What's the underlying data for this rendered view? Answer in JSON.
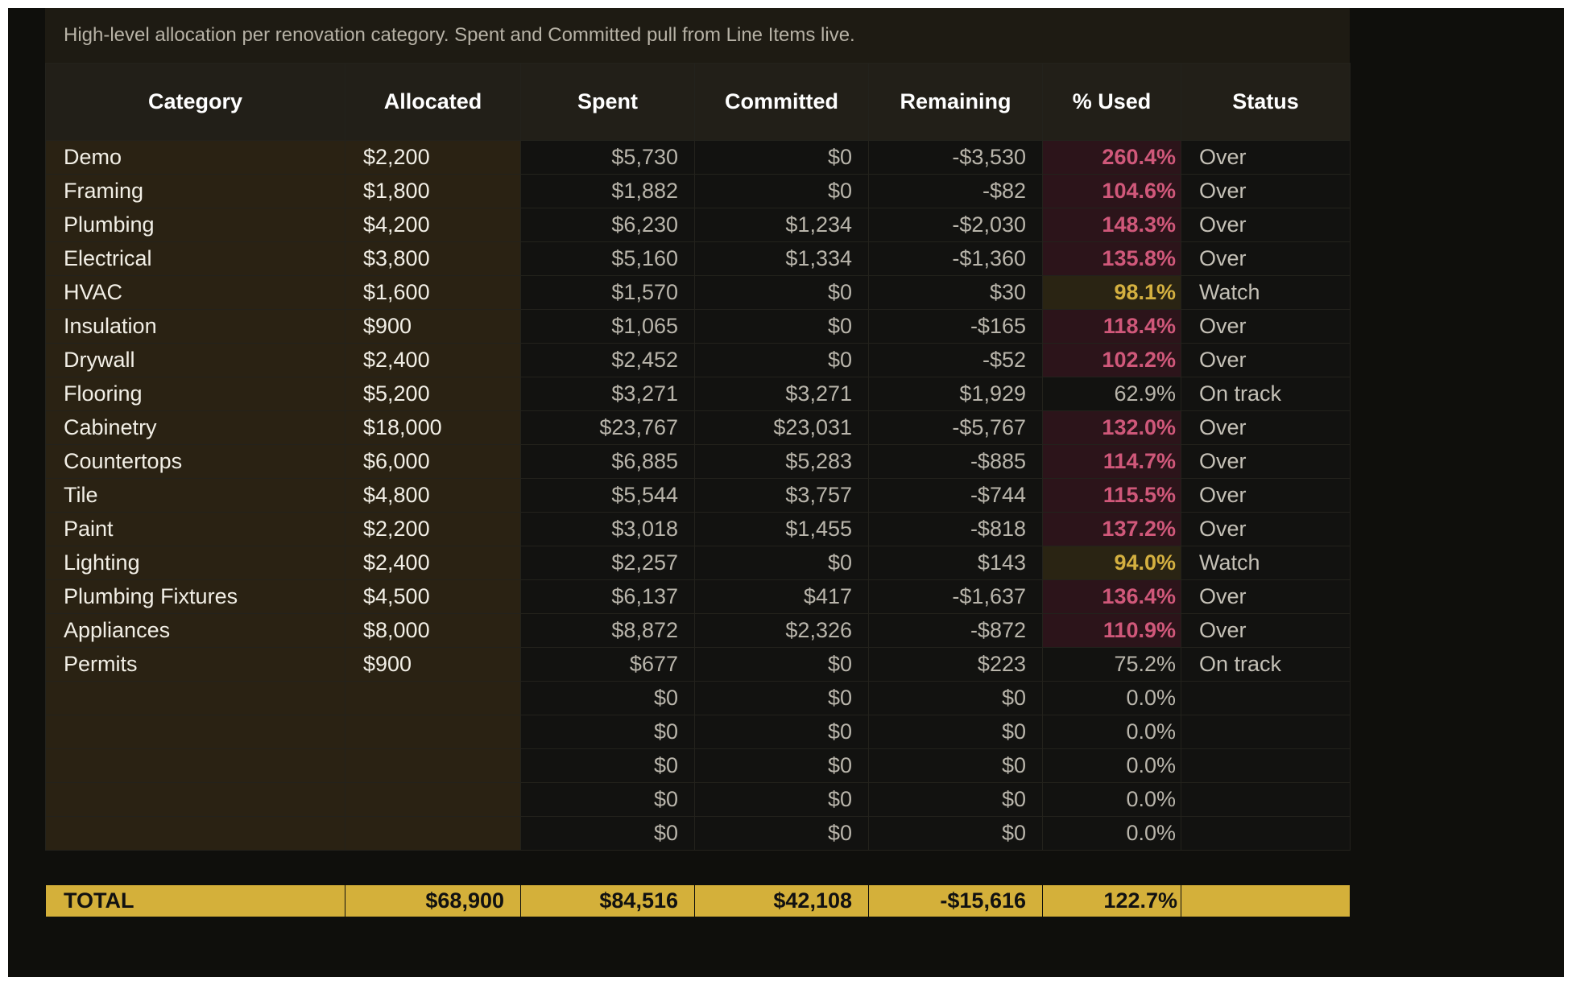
{
  "description": "High-level allocation per renovation category. Spent and Committed pull from Line Items live.",
  "headers": {
    "category": "Category",
    "allocated": "Allocated",
    "spent": "Spent",
    "committed": "Committed",
    "remaining": "Remaining",
    "pct_used": "% Used",
    "status": "Status"
  },
  "rows": [
    {
      "category": "Demo",
      "allocated": "$2,200",
      "spent": "$5,730",
      "committed": "$0",
      "remaining": "-$3,530",
      "pct": "260.4%",
      "level": "over",
      "status": "Over"
    },
    {
      "category": "Framing",
      "allocated": "$1,800",
      "spent": "$1,882",
      "committed": "$0",
      "remaining": "-$82",
      "pct": "104.6%",
      "level": "over",
      "status": "Over"
    },
    {
      "category": "Plumbing",
      "allocated": "$4,200",
      "spent": "$6,230",
      "committed": "$1,234",
      "remaining": "-$2,030",
      "pct": "148.3%",
      "level": "over",
      "status": "Over"
    },
    {
      "category": "Electrical",
      "allocated": "$3,800",
      "spent": "$5,160",
      "committed": "$1,334",
      "remaining": "-$1,360",
      "pct": "135.8%",
      "level": "over",
      "status": "Over"
    },
    {
      "category": "HVAC",
      "allocated": "$1,600",
      "spent": "$1,570",
      "committed": "$0",
      "remaining": "$30",
      "pct": "98.1%",
      "level": "watch",
      "status": "Watch"
    },
    {
      "category": "Insulation",
      "allocated": "$900",
      "spent": "$1,065",
      "committed": "$0",
      "remaining": "-$165",
      "pct": "118.4%",
      "level": "over",
      "status": "Over"
    },
    {
      "category": "Drywall",
      "allocated": "$2,400",
      "spent": "$2,452",
      "committed": "$0",
      "remaining": "-$52",
      "pct": "102.2%",
      "level": "over",
      "status": "Over"
    },
    {
      "category": "Flooring",
      "allocated": "$5,200",
      "spent": "$3,271",
      "committed": "$3,271",
      "remaining": "$1,929",
      "pct": "62.9%",
      "level": "ok",
      "status": "On track"
    },
    {
      "category": "Cabinetry",
      "allocated": "$18,000",
      "spent": "$23,767",
      "committed": "$23,031",
      "remaining": "-$5,767",
      "pct": "132.0%",
      "level": "over",
      "status": "Over"
    },
    {
      "category": "Countertops",
      "allocated": "$6,000",
      "spent": "$6,885",
      "committed": "$5,283",
      "remaining": "-$885",
      "pct": "114.7%",
      "level": "over",
      "status": "Over"
    },
    {
      "category": "Tile",
      "allocated": "$4,800",
      "spent": "$5,544",
      "committed": "$3,757",
      "remaining": "-$744",
      "pct": "115.5%",
      "level": "over",
      "status": "Over"
    },
    {
      "category": "Paint",
      "allocated": "$2,200",
      "spent": "$3,018",
      "committed": "$1,455",
      "remaining": "-$818",
      "pct": "137.2%",
      "level": "over",
      "status": "Over"
    },
    {
      "category": "Lighting",
      "allocated": "$2,400",
      "spent": "$2,257",
      "committed": "$0",
      "remaining": "$143",
      "pct": "94.0%",
      "level": "watch",
      "status": "Watch"
    },
    {
      "category": "Plumbing Fixtures",
      "allocated": "$4,500",
      "spent": "$6,137",
      "committed": "$417",
      "remaining": "-$1,637",
      "pct": "136.4%",
      "level": "over",
      "status": "Over"
    },
    {
      "category": "Appliances",
      "allocated": "$8,000",
      "spent": "$8,872",
      "committed": "$2,326",
      "remaining": "-$872",
      "pct": "110.9%",
      "level": "over",
      "status": "Over"
    },
    {
      "category": "Permits",
      "allocated": "$900",
      "spent": "$677",
      "committed": "$0",
      "remaining": "$223",
      "pct": "75.2%",
      "level": "ok",
      "status": "On track"
    },
    {
      "category": "",
      "allocated": "",
      "spent": "$0",
      "committed": "$0",
      "remaining": "$0",
      "pct": "0.0%",
      "level": "ok",
      "status": ""
    },
    {
      "category": "",
      "allocated": "",
      "spent": "$0",
      "committed": "$0",
      "remaining": "$0",
      "pct": "0.0%",
      "level": "ok",
      "status": ""
    },
    {
      "category": "",
      "allocated": "",
      "spent": "$0",
      "committed": "$0",
      "remaining": "$0",
      "pct": "0.0%",
      "level": "ok",
      "status": ""
    },
    {
      "category": "",
      "allocated": "",
      "spent": "$0",
      "committed": "$0",
      "remaining": "$0",
      "pct": "0.0%",
      "level": "ok",
      "status": ""
    },
    {
      "category": "",
      "allocated": "",
      "spent": "$0",
      "committed": "$0",
      "remaining": "$0",
      "pct": "0.0%",
      "level": "ok",
      "status": ""
    }
  ],
  "total": {
    "label": "TOTAL",
    "allocated": "$68,900",
    "spent": "$84,516",
    "committed": "$42,108",
    "remaining": "-$15,616",
    "pct": "122.7%",
    "status": ""
  },
  "colors": {
    "over_text": "#d0587a",
    "over_bg": "#2c141a",
    "watch_text": "#d4b040",
    "watch_bg": "#2a2413",
    "total_bg": "#d4b03a",
    "category_bg": "#2a2213"
  }
}
